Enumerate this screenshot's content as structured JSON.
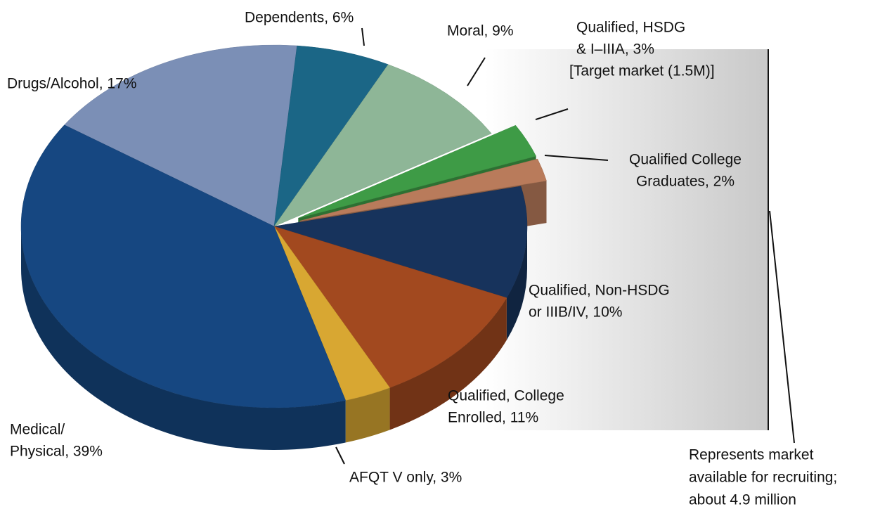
{
  "chart_data": {
    "type": "pie",
    "values": [
      17,
      6,
      9,
      3,
      2,
      10,
      11,
      3,
      39
    ],
    "value_labels": [
      [
        "Drugs/Alcohol, 17%"
      ],
      [
        "Dependents, 6%"
      ],
      [
        "Moral, 9%"
      ],
      [
        "Qualified, HSDG",
        "& I–IIIA, 3%",
        "[Target market (1.5M)]"
      ],
      [
        "Qualified College",
        "Graduates, 2%"
      ],
      [
        "Qualified, Non-HSDG",
        "or IIIB/IV, 10%"
      ],
      [
        "Qualified, College",
        "Enrolled, 11%"
      ],
      [
        "AFQT V only, 3%"
      ],
      [
        "Medical/",
        "Physical, 39%"
      ]
    ],
    "colors": [
      "#7b8fb6",
      "#1b6686",
      "#8eb697",
      "#3e9b46",
      "#b97b5b",
      "#17335c",
      "#a2491f",
      "#d8a732",
      "#164781"
    ],
    "exploded": [
      false,
      false,
      false,
      true,
      true,
      false,
      false,
      false,
      false
    ],
    "annotation": [
      "Represents market",
      "available for recruiting;",
      "about 4.9 million"
    ]
  }
}
